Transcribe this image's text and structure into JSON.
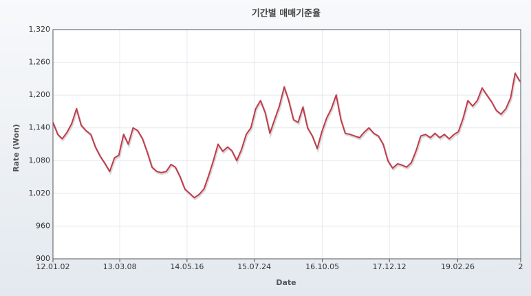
{
  "chart_data": {
    "type": "line",
    "title": "기간별 매매기준율",
    "xlabel": "Date",
    "ylabel": "Rate (Won)",
    "color": "#c23b4a",
    "grid": true,
    "x": [
      "2012-01-02",
      "2012-02-02",
      "2012-03-02",
      "2012-04-02",
      "2012-05-02",
      "2012-06-02",
      "2012-07-02",
      "2012-08-02",
      "2012-09-02",
      "2012-10-02",
      "2012-11-02",
      "2012-12-02",
      "2013-01-02",
      "2013-02-02",
      "2013-03-02",
      "2013-04-02",
      "2013-05-02",
      "2013-06-02",
      "2013-07-02",
      "2013-08-02",
      "2013-09-02",
      "2013-10-02",
      "2013-11-02",
      "2013-12-02",
      "2014-01-02",
      "2014-02-02",
      "2014-03-02",
      "2014-04-02",
      "2014-05-02",
      "2014-06-02",
      "2014-07-02",
      "2014-08-02",
      "2014-09-02",
      "2014-10-02",
      "2014-11-02",
      "2014-12-02",
      "2015-01-02",
      "2015-02-02",
      "2015-03-02",
      "2015-04-02",
      "2015-05-02",
      "2015-06-02",
      "2015-07-02",
      "2015-08-02",
      "2015-09-02",
      "2015-10-02",
      "2015-11-02",
      "2015-12-02",
      "2016-01-02",
      "2016-02-02",
      "2016-03-02",
      "2016-04-02",
      "2016-05-02",
      "2016-06-02",
      "2016-07-02",
      "2016-08-02",
      "2016-09-02",
      "2016-10-02",
      "2016-11-02",
      "2016-12-02",
      "2017-01-02",
      "2017-02-02",
      "2017-03-02",
      "2017-04-02",
      "2017-05-02",
      "2017-06-02",
      "2017-07-02",
      "2017-08-02",
      "2017-09-02",
      "2017-10-02",
      "2017-11-02",
      "2017-12-02",
      "2018-01-02",
      "2018-02-02",
      "2018-03-02",
      "2018-04-02",
      "2018-05-02",
      "2018-06-02",
      "2018-07-02",
      "2018-08-02",
      "2018-09-02",
      "2018-10-02",
      "2018-11-02",
      "2018-12-02",
      "2019-01-02",
      "2019-02-02",
      "2019-03-02",
      "2019-04-02",
      "2019-05-02",
      "2019-06-02",
      "2019-07-02",
      "2019-08-02",
      "2019-09-02",
      "2019-10-02",
      "2019-11-02",
      "2019-12-02",
      "2020-01-02",
      "2020-02-02",
      "2020-03-02",
      "2020-04-02"
    ],
    "values": [
      1150,
      1128,
      1120,
      1132,
      1148,
      1175,
      1145,
      1135,
      1128,
      1105,
      1088,
      1075,
      1060,
      1085,
      1090,
      1128,
      1110,
      1140,
      1135,
      1120,
      1095,
      1068,
      1060,
      1058,
      1060,
      1073,
      1068,
      1050,
      1028,
      1020,
      1012,
      1018,
      1028,
      1052,
      1080,
      1110,
      1097,
      1105,
      1098,
      1080,
      1100,
      1128,
      1140,
      1175,
      1190,
      1168,
      1130,
      1155,
      1180,
      1215,
      1190,
      1155,
      1150,
      1178,
      1140,
      1125,
      1102,
      1133,
      1158,
      1175,
      1200,
      1155,
      1130,
      1128,
      1125,
      1122,
      1132,
      1140,
      1130,
      1125,
      1110,
      1080,
      1066,
      1074,
      1072,
      1068,
      1076,
      1098,
      1125,
      1128,
      1122,
      1130,
      1122,
      1128,
      1120,
      1128,
      1133,
      1158,
      1190,
      1180,
      1190,
      1213,
      1200,
      1188,
      1172,
      1165,
      1175,
      1195,
      1240,
      1225
    ],
    "xlim": [
      "2012-01-02",
      "2020-04-07"
    ],
    "xticks": [
      {
        "value": "2012-01-02",
        "label": "12.01.02"
      },
      {
        "value": "2013-03-08",
        "label": "13.03.08"
      },
      {
        "value": "2014-05-16",
        "label": "14.05.16"
      },
      {
        "value": "2015-07-24",
        "label": "15.07.24"
      },
      {
        "value": "2016-10-05",
        "label": "16.10.05"
      },
      {
        "value": "2017-12-12",
        "label": "17.12.12"
      },
      {
        "value": "2019-02-26",
        "label": "19.02.26"
      },
      {
        "value": "2020-04-07",
        "label": "2"
      }
    ],
    "ylim": [
      900,
      1320
    ],
    "yticks": [
      900,
      960,
      {
        "value": 1020,
        "label": "1,020"
      },
      {
        "value": 1080,
        "label": "1,080"
      },
      {
        "value": 1140,
        "label": "1,140"
      },
      {
        "value": 1200,
        "label": "1,200"
      },
      {
        "value": 1260,
        "label": "1,260"
      },
      {
        "value": 1320,
        "label": "1,320"
      }
    ]
  }
}
